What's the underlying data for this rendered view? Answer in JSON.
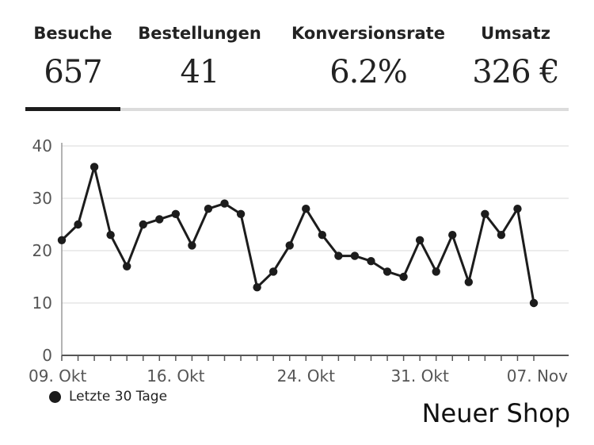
{
  "stats": [
    {
      "label": "Besuche",
      "value": "657",
      "active": true
    },
    {
      "label": "Bestellungen",
      "value": "41",
      "active": false
    },
    {
      "label": "Konversionsrate",
      "value": "6.2%",
      "active": false
    },
    {
      "label": "Umsatz",
      "value": "326 €",
      "active": false
    }
  ],
  "chart_data": {
    "type": "line",
    "x_ticks": [
      "09. Okt",
      "16. Okt",
      "24. Okt",
      "31. Okt",
      "07. Nov"
    ],
    "y_ticks": [
      "0",
      "10",
      "20",
      "30",
      "40"
    ],
    "ylim": [
      0,
      40
    ],
    "grid": true,
    "series": [
      {
        "name": "Letzte 30 Tage",
        "values": [
          22,
          25,
          36,
          23,
          17,
          25,
          26,
          27,
          21,
          28,
          29,
          27,
          13,
          16,
          21,
          28,
          23,
          19,
          19,
          18,
          16,
          15,
          22,
          16,
          23,
          14,
          27,
          23,
          28,
          10
        ]
      }
    ],
    "legend_position": "bottom-left"
  },
  "footer": {
    "shop_name": "Neuer Shop"
  },
  "colors": {
    "line": "#1c1c1c",
    "grid": "#e6e6e6",
    "tab_track": "#dcdcdc",
    "tab_active": "#1c1c1c"
  }
}
